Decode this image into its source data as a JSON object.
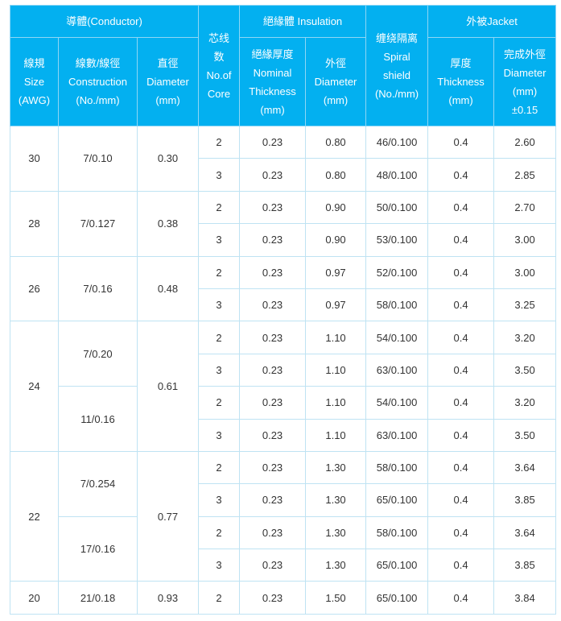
{
  "header": {
    "conductor": "導體(Conductor)",
    "size": [
      "線規",
      "Size",
      "(AWG)"
    ],
    "construction": [
      "線數/線徑",
      "Construction",
      "(No./mm)"
    ],
    "diameter": [
      "直徑",
      "Diameter",
      "(mm)"
    ],
    "cores": [
      "芯线",
      "数",
      "No.of",
      "Core"
    ],
    "insulation": "絕緣體 Insulation",
    "ins_thickness": [
      "絕緣厚度",
      "Nominal",
      "Thickness",
      "(mm)"
    ],
    "ins_outer": [
      "外徑",
      "Diameter",
      "(mm)"
    ],
    "spiral": [
      "缠绕隔离",
      "Spiral",
      "shield",
      "(No./mm)"
    ],
    "jacket": "外被Jacket",
    "jacket_thickness": [
      "厚度",
      "Thickness",
      "(mm)"
    ],
    "finished": [
      "完成外徑",
      "Diameter",
      "(mm)",
      "±0.15"
    ]
  },
  "groups": [
    {
      "awg": "30",
      "diameter": "0.30",
      "constructions": [
        {
          "value": "7/0.10",
          "rows": [
            [
              "2",
              "0.23",
              "0.80",
              "46/0.100",
              "0.4",
              "2.60"
            ],
            [
              "3",
              "0.23",
              "0.80",
              "48/0.100",
              "0.4",
              "2.85"
            ]
          ]
        }
      ]
    },
    {
      "awg": "28",
      "diameter": "0.38",
      "constructions": [
        {
          "value": "7/0.127",
          "rows": [
            [
              "2",
              "0.23",
              "0.90",
              "50/0.100",
              "0.4",
              "2.70"
            ],
            [
              "3",
              "0.23",
              "0.90",
              "53/0.100",
              "0.4",
              "3.00"
            ]
          ]
        }
      ]
    },
    {
      "awg": "26",
      "diameter": "0.48",
      "constructions": [
        {
          "value": "7/0.16",
          "rows": [
            [
              "2",
              "0.23",
              "0.97",
              "52/0.100",
              "0.4",
              "3.00"
            ],
            [
              "3",
              "0.23",
              "0.97",
              "58/0.100",
              "0.4",
              "3.25"
            ]
          ]
        }
      ]
    },
    {
      "awg": "24",
      "diameter": "0.61",
      "constructions": [
        {
          "value": "7/0.20",
          "rows": [
            [
              "2",
              "0.23",
              "1.10",
              "54/0.100",
              "0.4",
              "3.20"
            ],
            [
              "3",
              "0.23",
              "1.10",
              "63/0.100",
              "0.4",
              "3.50"
            ]
          ]
        },
        {
          "value": "11/0.16",
          "rows": [
            [
              "2",
              "0.23",
              "1.10",
              "54/0.100",
              "0.4",
              "3.20"
            ],
            [
              "3",
              "0.23",
              "1.10",
              "63/0.100",
              "0.4",
              "3.50"
            ]
          ]
        }
      ]
    },
    {
      "awg": "22",
      "diameter": "0.77",
      "constructions": [
        {
          "value": "7/0.254",
          "rows": [
            [
              "2",
              "0.23",
              "1.30",
              "58/0.100",
              "0.4",
              "3.64"
            ],
            [
              "3",
              "0.23",
              "1.30",
              "65/0.100",
              "0.4",
              "3.85"
            ]
          ]
        },
        {
          "value": "17/0.16",
          "rows": [
            [
              "2",
              "0.23",
              "1.30",
              "58/0.100",
              "0.4",
              "3.64"
            ],
            [
              "3",
              "0.23",
              "1.30",
              "65/0.100",
              "0.4",
              "3.85"
            ]
          ]
        }
      ]
    },
    {
      "awg": "20",
      "diameter": "0.93",
      "constructions": [
        {
          "value": "21/0.18",
          "rows": [
            [
              "2",
              "0.23",
              "1.50",
              "65/0.100",
              "0.4",
              "3.84"
            ]
          ]
        }
      ]
    }
  ]
}
